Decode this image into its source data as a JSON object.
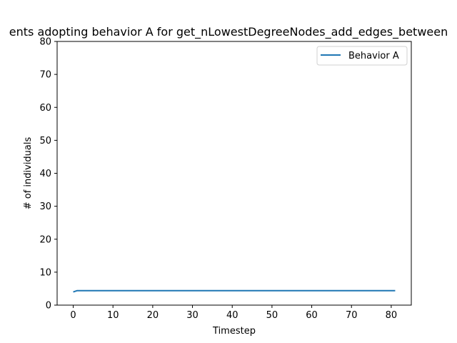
{
  "chart_data": {
    "type": "line",
    "title": "ents adopting behavior A for get_nLowestDegreeNodes_add_edges_between",
    "xlabel": "Timestep",
    "ylabel": "# of individuals",
    "xlim": [
      -4.05,
      85.05
    ],
    "ylim": [
      0,
      80
    ],
    "xticks": [
      0,
      10,
      20,
      30,
      40,
      50,
      60,
      70,
      80
    ],
    "yticks": [
      0,
      10,
      20,
      30,
      40,
      50,
      60,
      70,
      80
    ],
    "grid": false,
    "legend_position": "top-right",
    "series": [
      {
        "name": "Behavior A",
        "color": "#1f77b4",
        "x": [
          0,
          1,
          81
        ],
        "y": [
          4,
          4.4,
          4.4
        ]
      }
    ]
  }
}
